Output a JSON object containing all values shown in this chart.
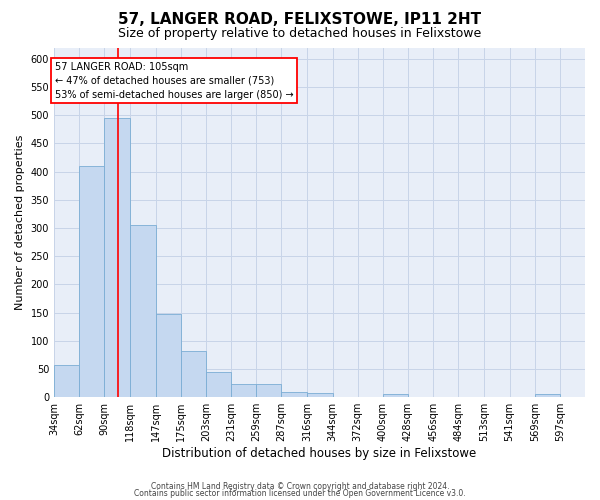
{
  "title": "57, LANGER ROAD, FELIXSTOWE, IP11 2HT",
  "subtitle": "Size of property relative to detached houses in Felixstowe",
  "xlabel": "Distribution of detached houses by size in Felixstowe",
  "ylabel": "Number of detached properties",
  "footer_line1": "Contains HM Land Registry data © Crown copyright and database right 2024.",
  "footer_line2": "Contains public sector information licensed under the Open Government Licence v3.0.",
  "annotation_title": "57 LANGER ROAD: 105sqm",
  "annotation_line1": "← 47% of detached houses are smaller (753)",
  "annotation_line2": "53% of semi-detached houses are larger (850) →",
  "bar_color": "#c5d8f0",
  "bar_edge_color": "#7aadd4",
  "red_line_x": 105,
  "categories": [
    "34sqm",
    "62sqm",
    "90sqm",
    "118sqm",
    "147sqm",
    "175sqm",
    "203sqm",
    "231sqm",
    "259sqm",
    "287sqm",
    "316sqm",
    "344sqm",
    "372sqm",
    "400sqm",
    "428sqm",
    "456sqm",
    "484sqm",
    "513sqm",
    "541sqm",
    "569sqm",
    "597sqm"
  ],
  "bin_edges": [
    34,
    62,
    90,
    118,
    147,
    175,
    203,
    231,
    259,
    287,
    316,
    344,
    372,
    400,
    428,
    456,
    484,
    513,
    541,
    569,
    597,
    625
  ],
  "values": [
    57,
    410,
    495,
    305,
    148,
    82,
    44,
    24,
    24,
    10,
    7,
    0,
    0,
    5,
    0,
    0,
    0,
    0,
    0,
    5,
    0
  ],
  "ylim": [
    0,
    620
  ],
  "yticks": [
    0,
    50,
    100,
    150,
    200,
    250,
    300,
    350,
    400,
    450,
    500,
    550,
    600
  ],
  "background_color": "#ffffff",
  "axes_bg_color": "#e8eef8",
  "grid_color": "#c8d4e8",
  "title_fontsize": 11,
  "subtitle_fontsize": 9,
  "axis_label_fontsize": 8,
  "tick_fontsize": 7,
  "annotation_fontsize": 7,
  "footer_fontsize": 5.5
}
